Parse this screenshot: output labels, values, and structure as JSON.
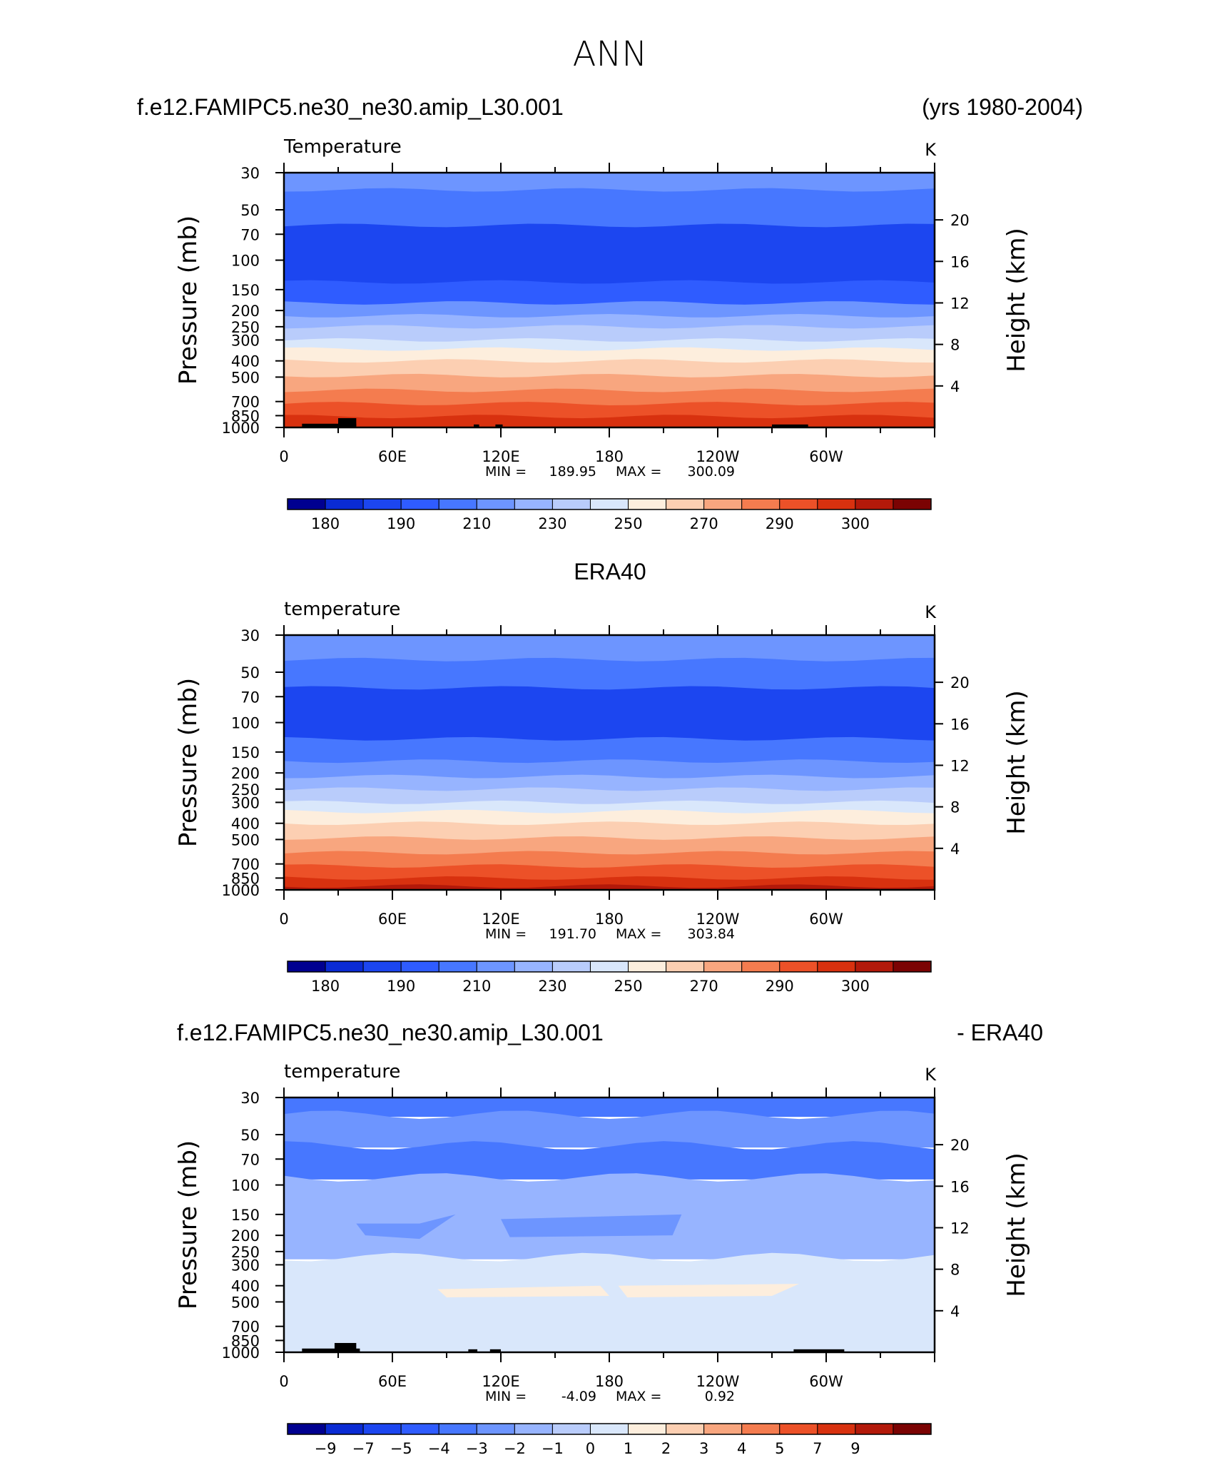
{
  "page_title": "ANN",
  "header": {
    "case_name": "f.e12.FAMIPC5.ne30_ne30.amip_L30.001",
    "years": "(yrs 1980-2004)"
  },
  "panel2_title": "ERA40",
  "panel3_header": {
    "case_name": "f.e12.FAMIPC5.ne30_ne30.amip_L30.001",
    "minus_label": "- ERA40"
  },
  "chart_data": [
    {
      "type": "heatmap",
      "title": "Temperature",
      "units": "K",
      "xlabel": "",
      "ylabel": "Pressure (mb)",
      "ylabel_right": "Height (km)",
      "x_tick_labels": [
        "0",
        "60E",
        "120E",
        "180",
        "120W",
        "60W"
      ],
      "x_range": [
        0,
        360
      ],
      "y_tick_labels": [
        "30",
        "50",
        "70",
        "100",
        "150",
        "200",
        "250",
        "300",
        "400",
        "500",
        "700",
        "850",
        "1000"
      ],
      "y_range": [
        1000,
        30
      ],
      "height_tick_labels": [
        "20",
        "16",
        "12",
        "8",
        "4"
      ],
      "stats": {
        "min_label": "MIN =",
        "min": "189.95",
        "max_label": "MAX =",
        "max": "300.09"
      },
      "colorbar": {
        "colors": [
          "#000090",
          "#0a2bd4",
          "#1c46f0",
          "#2f5cff",
          "#4777ff",
          "#6d95ff",
          "#97b4ff",
          "#b9ccfb",
          "#d9e7fb",
          "#fdeedd",
          "#fccfb2",
          "#f8a67f",
          "#f47c4f",
          "#ec5128",
          "#d8310f",
          "#b3190a",
          "#7b0303"
        ],
        "tick_labels": [
          "180",
          "190",
          "210",
          "230",
          "250",
          "270",
          "290",
          "300"
        ]
      },
      "bands": [
        {
          "p_top": 30,
          "p_bot": 38,
          "color": "#6d95ff"
        },
        {
          "p_top": 38,
          "p_bot": 62,
          "color": "#4777ff"
        },
        {
          "p_top": 62,
          "p_bot": 135,
          "color": "#1c46f0"
        },
        {
          "p_top": 135,
          "p_bot": 180,
          "color": "#2f5cff"
        },
        {
          "p_top": 180,
          "p_bot": 215,
          "color": "#6d95ff"
        },
        {
          "p_top": 215,
          "p_bot": 250,
          "color": "#97b4ff"
        },
        {
          "p_top": 250,
          "p_bot": 300,
          "color": "#b9ccfb"
        },
        {
          "p_top": 300,
          "p_bot": 340,
          "color": "#d9e7fb"
        },
        {
          "p_top": 340,
          "p_bot": 400,
          "color": "#fdeedd"
        },
        {
          "p_top": 400,
          "p_bot": 490,
          "color": "#fccfb2"
        },
        {
          "p_top": 490,
          "p_bot": 600,
          "color": "#f8a67f"
        },
        {
          "p_top": 600,
          "p_bot": 720,
          "color": "#f47c4f"
        },
        {
          "p_top": 720,
          "p_bot": 860,
          "color": "#ec5128"
        },
        {
          "p_top": 860,
          "p_bot": 1000,
          "color": "#d8310f"
        }
      ],
      "topography": [
        [
          10,
          40,
          950
        ],
        [
          30,
          40,
          880
        ],
        [
          105,
          108,
          960
        ],
        [
          117,
          121,
          960
        ],
        [
          270,
          290,
          960
        ]
      ]
    },
    {
      "type": "heatmap",
      "title": "temperature",
      "units": "K",
      "xlabel": "",
      "ylabel": "Pressure (mb)",
      "ylabel_right": "Height (km)",
      "x_tick_labels": [
        "0",
        "60E",
        "120E",
        "180",
        "120W",
        "60W"
      ],
      "x_range": [
        0,
        360
      ],
      "y_tick_labels": [
        "30",
        "50",
        "70",
        "100",
        "150",
        "200",
        "250",
        "300",
        "400",
        "500",
        "700",
        "850",
        "1000"
      ],
      "y_range": [
        1000,
        30
      ],
      "height_tick_labels": [
        "20",
        "16",
        "12",
        "8",
        "4"
      ],
      "stats": {
        "min_label": "MIN =",
        "min": "191.70",
        "max_label": "MAX =",
        "max": "303.84"
      },
      "colorbar": {
        "colors": [
          "#000090",
          "#0a2bd4",
          "#1c46f0",
          "#2f5cff",
          "#4777ff",
          "#6d95ff",
          "#97b4ff",
          "#b9ccfb",
          "#d9e7fb",
          "#fdeedd",
          "#fccfb2",
          "#f8a67f",
          "#f47c4f",
          "#ec5128",
          "#d8310f",
          "#b3190a",
          "#7b0303"
        ],
        "tick_labels": [
          "180",
          "190",
          "210",
          "230",
          "250",
          "270",
          "290",
          "300"
        ]
      },
      "bands": [
        {
          "p_top": 30,
          "p_bot": 42,
          "color": "#6d95ff"
        },
        {
          "p_top": 42,
          "p_bot": 62,
          "color": "#4777ff"
        },
        {
          "p_top": 62,
          "p_bot": 125,
          "color": "#1c46f0"
        },
        {
          "p_top": 125,
          "p_bot": 170,
          "color": "#4777ff"
        },
        {
          "p_top": 170,
          "p_bot": 210,
          "color": "#6d95ff"
        },
        {
          "p_top": 210,
          "p_bot": 250,
          "color": "#97b4ff"
        },
        {
          "p_top": 250,
          "p_bot": 300,
          "color": "#b9ccfb"
        },
        {
          "p_top": 300,
          "p_bot": 340,
          "color": "#d9e7fb"
        },
        {
          "p_top": 340,
          "p_bot": 400,
          "color": "#fdeedd"
        },
        {
          "p_top": 400,
          "p_bot": 490,
          "color": "#fccfb2"
        },
        {
          "p_top": 490,
          "p_bot": 600,
          "color": "#f8a67f"
        },
        {
          "p_top": 600,
          "p_bot": 720,
          "color": "#f47c4f"
        },
        {
          "p_top": 720,
          "p_bot": 850,
          "color": "#ec5128"
        },
        {
          "p_top": 850,
          "p_bot": 950,
          "color": "#d8310f"
        },
        {
          "p_top": 950,
          "p_bot": 1000,
          "color": "#b3190a"
        }
      ],
      "topography": []
    },
    {
      "type": "heatmap",
      "title": "temperature",
      "units": "K",
      "xlabel": "",
      "ylabel": "Pressure (mb)",
      "ylabel_right": "Height (km)",
      "x_tick_labels": [
        "0",
        "60E",
        "120E",
        "180",
        "120W",
        "60W"
      ],
      "x_range": [
        0,
        360
      ],
      "y_tick_labels": [
        "30",
        "50",
        "70",
        "100",
        "150",
        "200",
        "250",
        "300",
        "400",
        "500",
        "700",
        "850",
        "1000"
      ],
      "y_range": [
        1000,
        30
      ],
      "height_tick_labels": [
        "20",
        "16",
        "12",
        "8",
        "4"
      ],
      "stats": {
        "min_label": "MIN =",
        "min": "-4.09",
        "max_label": "MAX =",
        "max": "0.92"
      },
      "colorbar": {
        "colors": [
          "#000090",
          "#0a2bd4",
          "#1c46f0",
          "#2f5cff",
          "#4777ff",
          "#6d95ff",
          "#97b4ff",
          "#b9ccfb",
          "#d9e7fb",
          "#fdeedd",
          "#fccfb2",
          "#f8a67f",
          "#f47c4f",
          "#ec5128",
          "#d8310f",
          "#b3190a",
          "#7b0303"
        ],
        "tick_labels": [
          "−9",
          "−7",
          "−5",
          "−4",
          "−3",
          "−2",
          "−1",
          "0",
          "1",
          "2",
          "3",
          "4",
          "5",
          "7",
          "9"
        ]
      },
      "bands": [
        {
          "p_top": 30,
          "p_bot": 38,
          "color": "#4777ff"
        },
        {
          "p_top": 38,
          "p_bot": 58,
          "color": "#6d95ff"
        },
        {
          "p_top": 58,
          "p_bot": 90,
          "color": "#4777ff"
        },
        {
          "p_top": 90,
          "p_bot": 270,
          "color": "#97b4ff"
        },
        {
          "p_top": 270,
          "p_bot": 1000,
          "color": "#d9e7fb"
        }
      ],
      "topography": [
        [
          10,
          42,
          950
        ],
        [
          28,
          40,
          880
        ],
        [
          102,
          107,
          960
        ],
        [
          114,
          120,
          960
        ],
        [
          282,
          310,
          960
        ]
      ]
    }
  ]
}
